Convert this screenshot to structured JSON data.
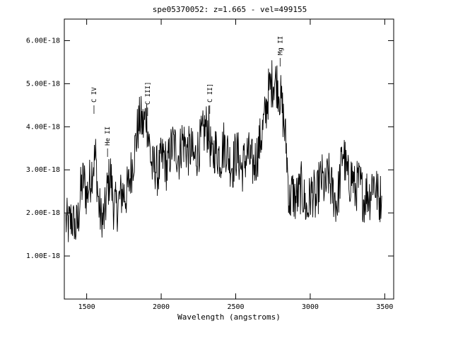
{
  "chart_data": {
    "type": "line",
    "title": "spe05370052: z=1.665 - vel=499155",
    "xlabel": "Wavelength (angstroms)",
    "ylabel": "",
    "xlim": [
      1350,
      3560
    ],
    "ylim": [
      0,
      6.5e-18
    ],
    "xticks": [
      1500,
      2000,
      2500,
      3000,
      3500
    ],
    "xtick_labels": [
      "1500",
      "2000",
      "2500",
      "3000",
      "3500"
    ],
    "yticks": [
      1e-18,
      2e-18,
      3e-18,
      4e-18,
      5e-18,
      6e-18
    ],
    "ytick_labels": [
      "1.00E-18",
      "2.00E-18",
      "3.00E-18",
      "4.00E-18",
      "5.00E-18",
      "6.00E-18"
    ],
    "grid": false,
    "line_color": "#000000",
    "emission_lines": [
      {
        "label": "C IV",
        "x": 1549,
        "y": 4.3e-18
      },
      {
        "label": "He II",
        "x": 1640,
        "y": 3.3e-18
      },
      {
        "label": "C III]",
        "x": 1909,
        "y": 4.25e-18
      },
      {
        "label": "C II]",
        "x": 2326,
        "y": 4.3e-18
      },
      {
        "label": "Mg II",
        "x": 2798,
        "y": 5.4e-18
      }
    ],
    "spectrum": {
      "x": [
        1360,
        1380,
        1400,
        1420,
        1440,
        1460,
        1480,
        1500,
        1520,
        1540,
        1560,
        1580,
        1600,
        1620,
        1640,
        1660,
        1680,
        1700,
        1720,
        1740,
        1760,
        1780,
        1800,
        1820,
        1840,
        1860,
        1880,
        1900,
        1920,
        1940,
        1960,
        1980,
        2000,
        2020,
        2040,
        2060,
        2080,
        2100,
        2120,
        2140,
        2160,
        2180,
        2200,
        2220,
        2240,
        2260,
        2280,
        2300,
        2320,
        2340,
        2360,
        2380,
        2400,
        2420,
        2440,
        2460,
        2480,
        2500,
        2520,
        2540,
        2560,
        2580,
        2600,
        2620,
        2640,
        2660,
        2680,
        2700,
        2720,
        2740,
        2760,
        2780,
        2800,
        2820,
        2840,
        2860,
        2880,
        2900,
        2920,
        2940,
        2960,
        2980,
        3000,
        3020,
        3040,
        3060,
        3080,
        3100,
        3120,
        3140,
        3160,
        3180,
        3200,
        3220,
        3240,
        3260,
        3280,
        3300,
        3320,
        3340,
        3360,
        3380,
        3400,
        3420,
        3440,
        3460,
        3480
      ],
      "y": [
        1.8e-18,
        1.7e-18,
        1.9e-18,
        1.6e-18,
        1.75e-18,
        2.5e-18,
        2.8e-18,
        2.4e-18,
        2.7e-18,
        3.1e-18,
        3.3e-18,
        2.2e-18,
        1.8e-18,
        1.9e-18,
        2.6e-18,
        2.9e-18,
        2.2e-18,
        2.1e-18,
        2.3e-18,
        2.5e-18,
        2.4e-18,
        2.6e-18,
        3e-18,
        3.4e-18,
        3.9e-18,
        4.2e-18,
        4e-18,
        4.3e-18,
        3.6e-18,
        3e-18,
        3.1e-18,
        2.9e-18,
        3.2e-18,
        3.3e-18,
        3e-18,
        3.4e-18,
        3.6e-18,
        3.5e-18,
        3.3e-18,
        3.7e-18,
        3.6e-18,
        3.4e-18,
        3.5e-18,
        3.2e-18,
        3.4e-18,
        3.6e-18,
        3.8e-18,
        4e-18,
        3.9e-18,
        3.2e-18,
        3.5e-18,
        3.4e-18,
        3.3e-18,
        3.6e-18,
        3.5e-18,
        3.2e-18,
        3.1e-18,
        3.4e-18,
        3.3e-18,
        3e-18,
        3.2e-18,
        3.4e-18,
        3.2e-18,
        3.1e-18,
        3.3e-18,
        3.6e-18,
        3.9e-18,
        4.3e-18,
        4.8e-18,
        5e-18,
        5.1e-18,
        5e-18,
        4.7e-18,
        4.2e-18,
        3.5e-18,
        2.2e-18,
        2.5e-18,
        2.3e-18,
        2.4e-18,
        2.6e-18,
        2.3e-18,
        2e-18,
        2.4e-18,
        2.5e-18,
        2.2e-18,
        2.7e-18,
        2.8e-18,
        2.5e-18,
        2.9e-18,
        2.6e-18,
        2.4e-18,
        2.2e-18,
        2.8e-18,
        3.5e-18,
        3e-18,
        2.7e-18,
        2.9e-18,
        2.5e-18,
        2.7e-18,
        2.6e-18,
        2.3e-18,
        2.5e-18,
        2.4e-18,
        2.8e-18,
        2.6e-18,
        2.3e-18,
        2.4e-18
      ]
    }
  }
}
